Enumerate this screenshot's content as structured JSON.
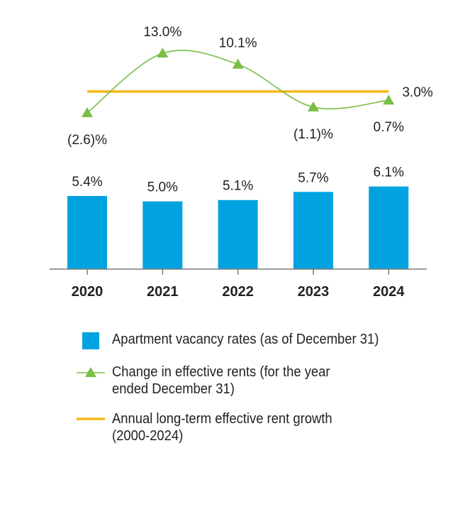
{
  "chart_data": {
    "type": "bar",
    "categories": [
      "2020",
      "2021",
      "2022",
      "2023",
      "2024"
    ],
    "series": [
      {
        "name": "Apartment vacancy rates (as of December 31)",
        "kind": "bar",
        "values": [
          5.4,
          5.0,
          5.1,
          5.7,
          6.1
        ],
        "labels": [
          "5.4%",
          "5.0%",
          "5.1%",
          "5.7%",
          "6.1%"
        ],
        "color": "#00a3e0"
      },
      {
        "name": "Change in effective rents (for the year ended December 31)",
        "kind": "line",
        "values": [
          -2.6,
          13.0,
          10.1,
          -1.1,
          0.7
        ],
        "labels": [
          "(2.6)%",
          "13.0%",
          "10.1%",
          "(1.1)%",
          "0.7%"
        ],
        "color": "#78be43"
      },
      {
        "name": "Annual long-term effective rent growth (2000-2024)",
        "kind": "reference-line",
        "value": 3.0,
        "label": "3.0%",
        "color": "#f7b818"
      }
    ]
  },
  "legend": {
    "items": [
      {
        "name": "legend-vacancy",
        "type": "bar",
        "lines": [
          "Apartment vacancy rates (as of December 31)"
        ]
      },
      {
        "name": "legend-rent-change",
        "type": "line-marker",
        "lines": [
          "Change in effective rents (for the year",
          "ended December 31)"
        ]
      },
      {
        "name": "legend-long-term",
        "type": "line",
        "lines": [
          "Annual long-term effective rent growth",
          "(2000-2024)"
        ]
      }
    ]
  }
}
